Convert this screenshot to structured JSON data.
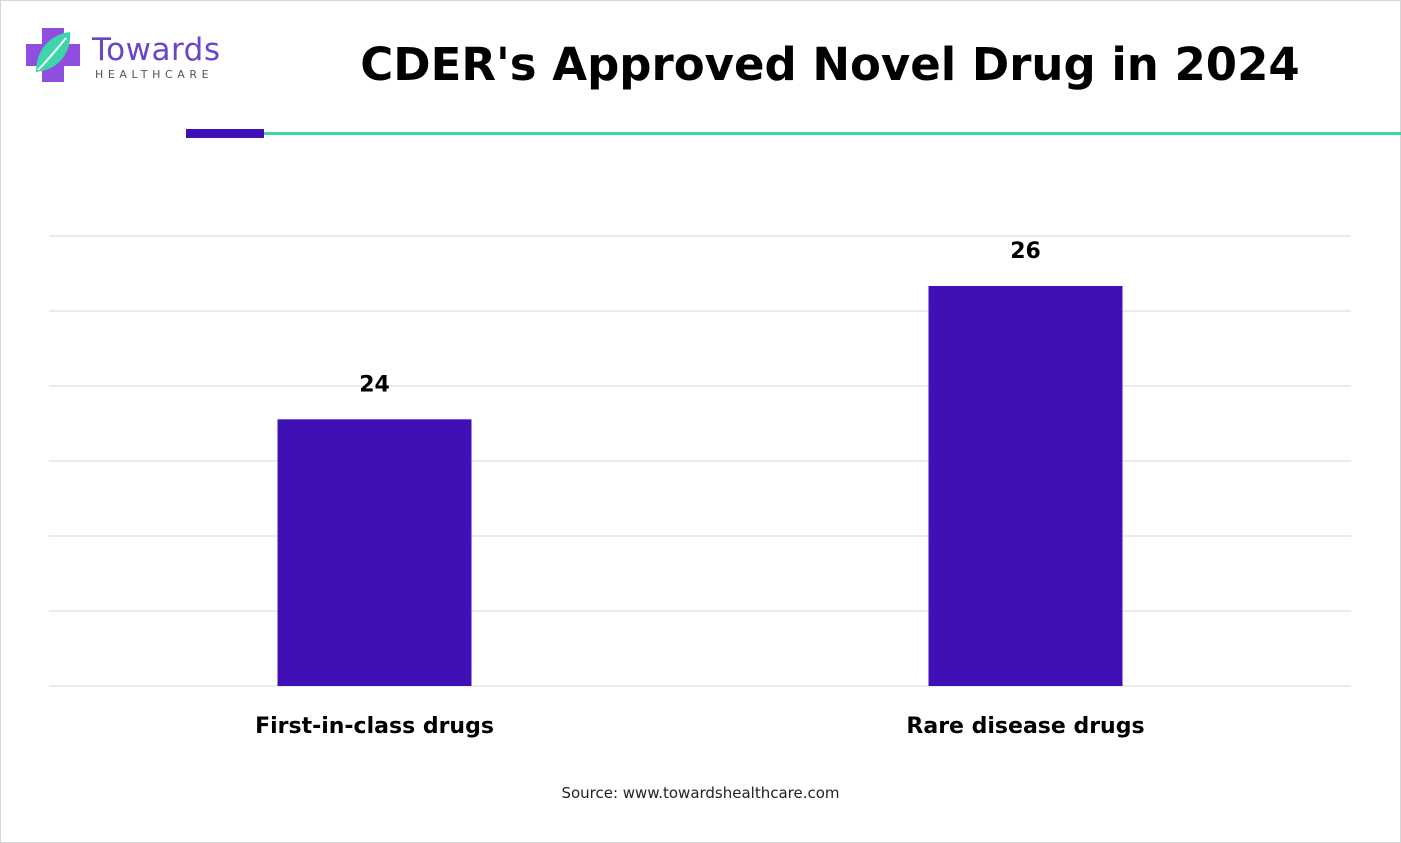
{
  "brand": {
    "name": "Towards",
    "sub": "HEALTHCARE",
    "colors": {
      "purple": "#6a45c9",
      "teal": "#3ed6a8",
      "cross": "#8f4ee0"
    }
  },
  "header": {
    "title": "CDER's Approved Novel Drug in 2024"
  },
  "chart_data": {
    "type": "bar",
    "categories": [
      "First-in-class drugs",
      "Rare disease drugs"
    ],
    "values": [
      24,
      26
    ],
    "data_labels": [
      "24",
      "26"
    ],
    "title": "CDER's Approved Novel Drug in 2024",
    "xlabel": "",
    "ylabel": "",
    "ylim": [
      20,
      26.75
    ],
    "grid": true,
    "bar_color": "#3f10b6",
    "gridline_color": "#d9d9d9"
  },
  "footer": {
    "source": "Source: www.towardshealthcare.com"
  }
}
